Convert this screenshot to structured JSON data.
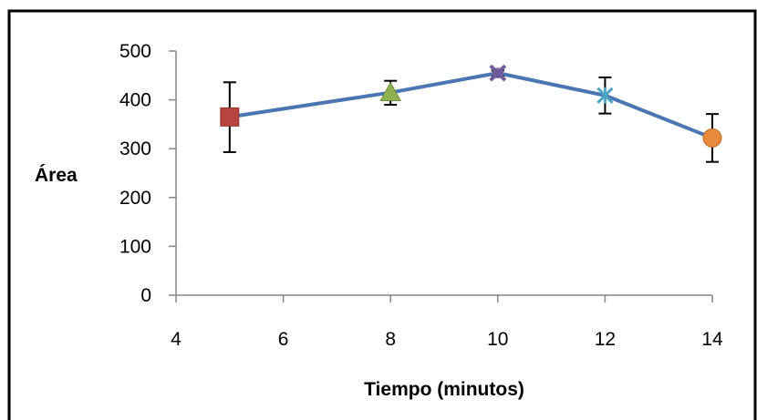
{
  "chart_data": {
    "type": "scatter",
    "title": "",
    "xlabel": "Tiempo (minutos)",
    "ylabel": "Área",
    "xlim": [
      4,
      14
    ],
    "ylim": [
      0,
      500
    ],
    "x_ticks": [
      4,
      6,
      8,
      10,
      12,
      14
    ],
    "y_ticks": [
      0,
      100,
      200,
      300,
      400,
      500
    ],
    "grid": false,
    "line_color": "#4a76b4",
    "points": [
      {
        "x": 5,
        "y": 365,
        "err_low": 293,
        "err_high": 436,
        "marker": "square",
        "color": "#b7443f"
      },
      {
        "x": 8,
        "y": 415,
        "err_low": 390,
        "err_high": 439,
        "marker": "triangle",
        "color": "#8fb152"
      },
      {
        "x": 10,
        "y": 455,
        "err_low": 448,
        "err_high": 460,
        "marker": "x",
        "color": "#6f5a9a"
      },
      {
        "x": 12,
        "y": 409,
        "err_low": 372,
        "err_high": 446,
        "marker": "star",
        "color": "#4aa5c3"
      },
      {
        "x": 14,
        "y": 322,
        "err_low": 273,
        "err_high": 371,
        "marker": "circle",
        "color": "#e88a3c"
      }
    ]
  }
}
